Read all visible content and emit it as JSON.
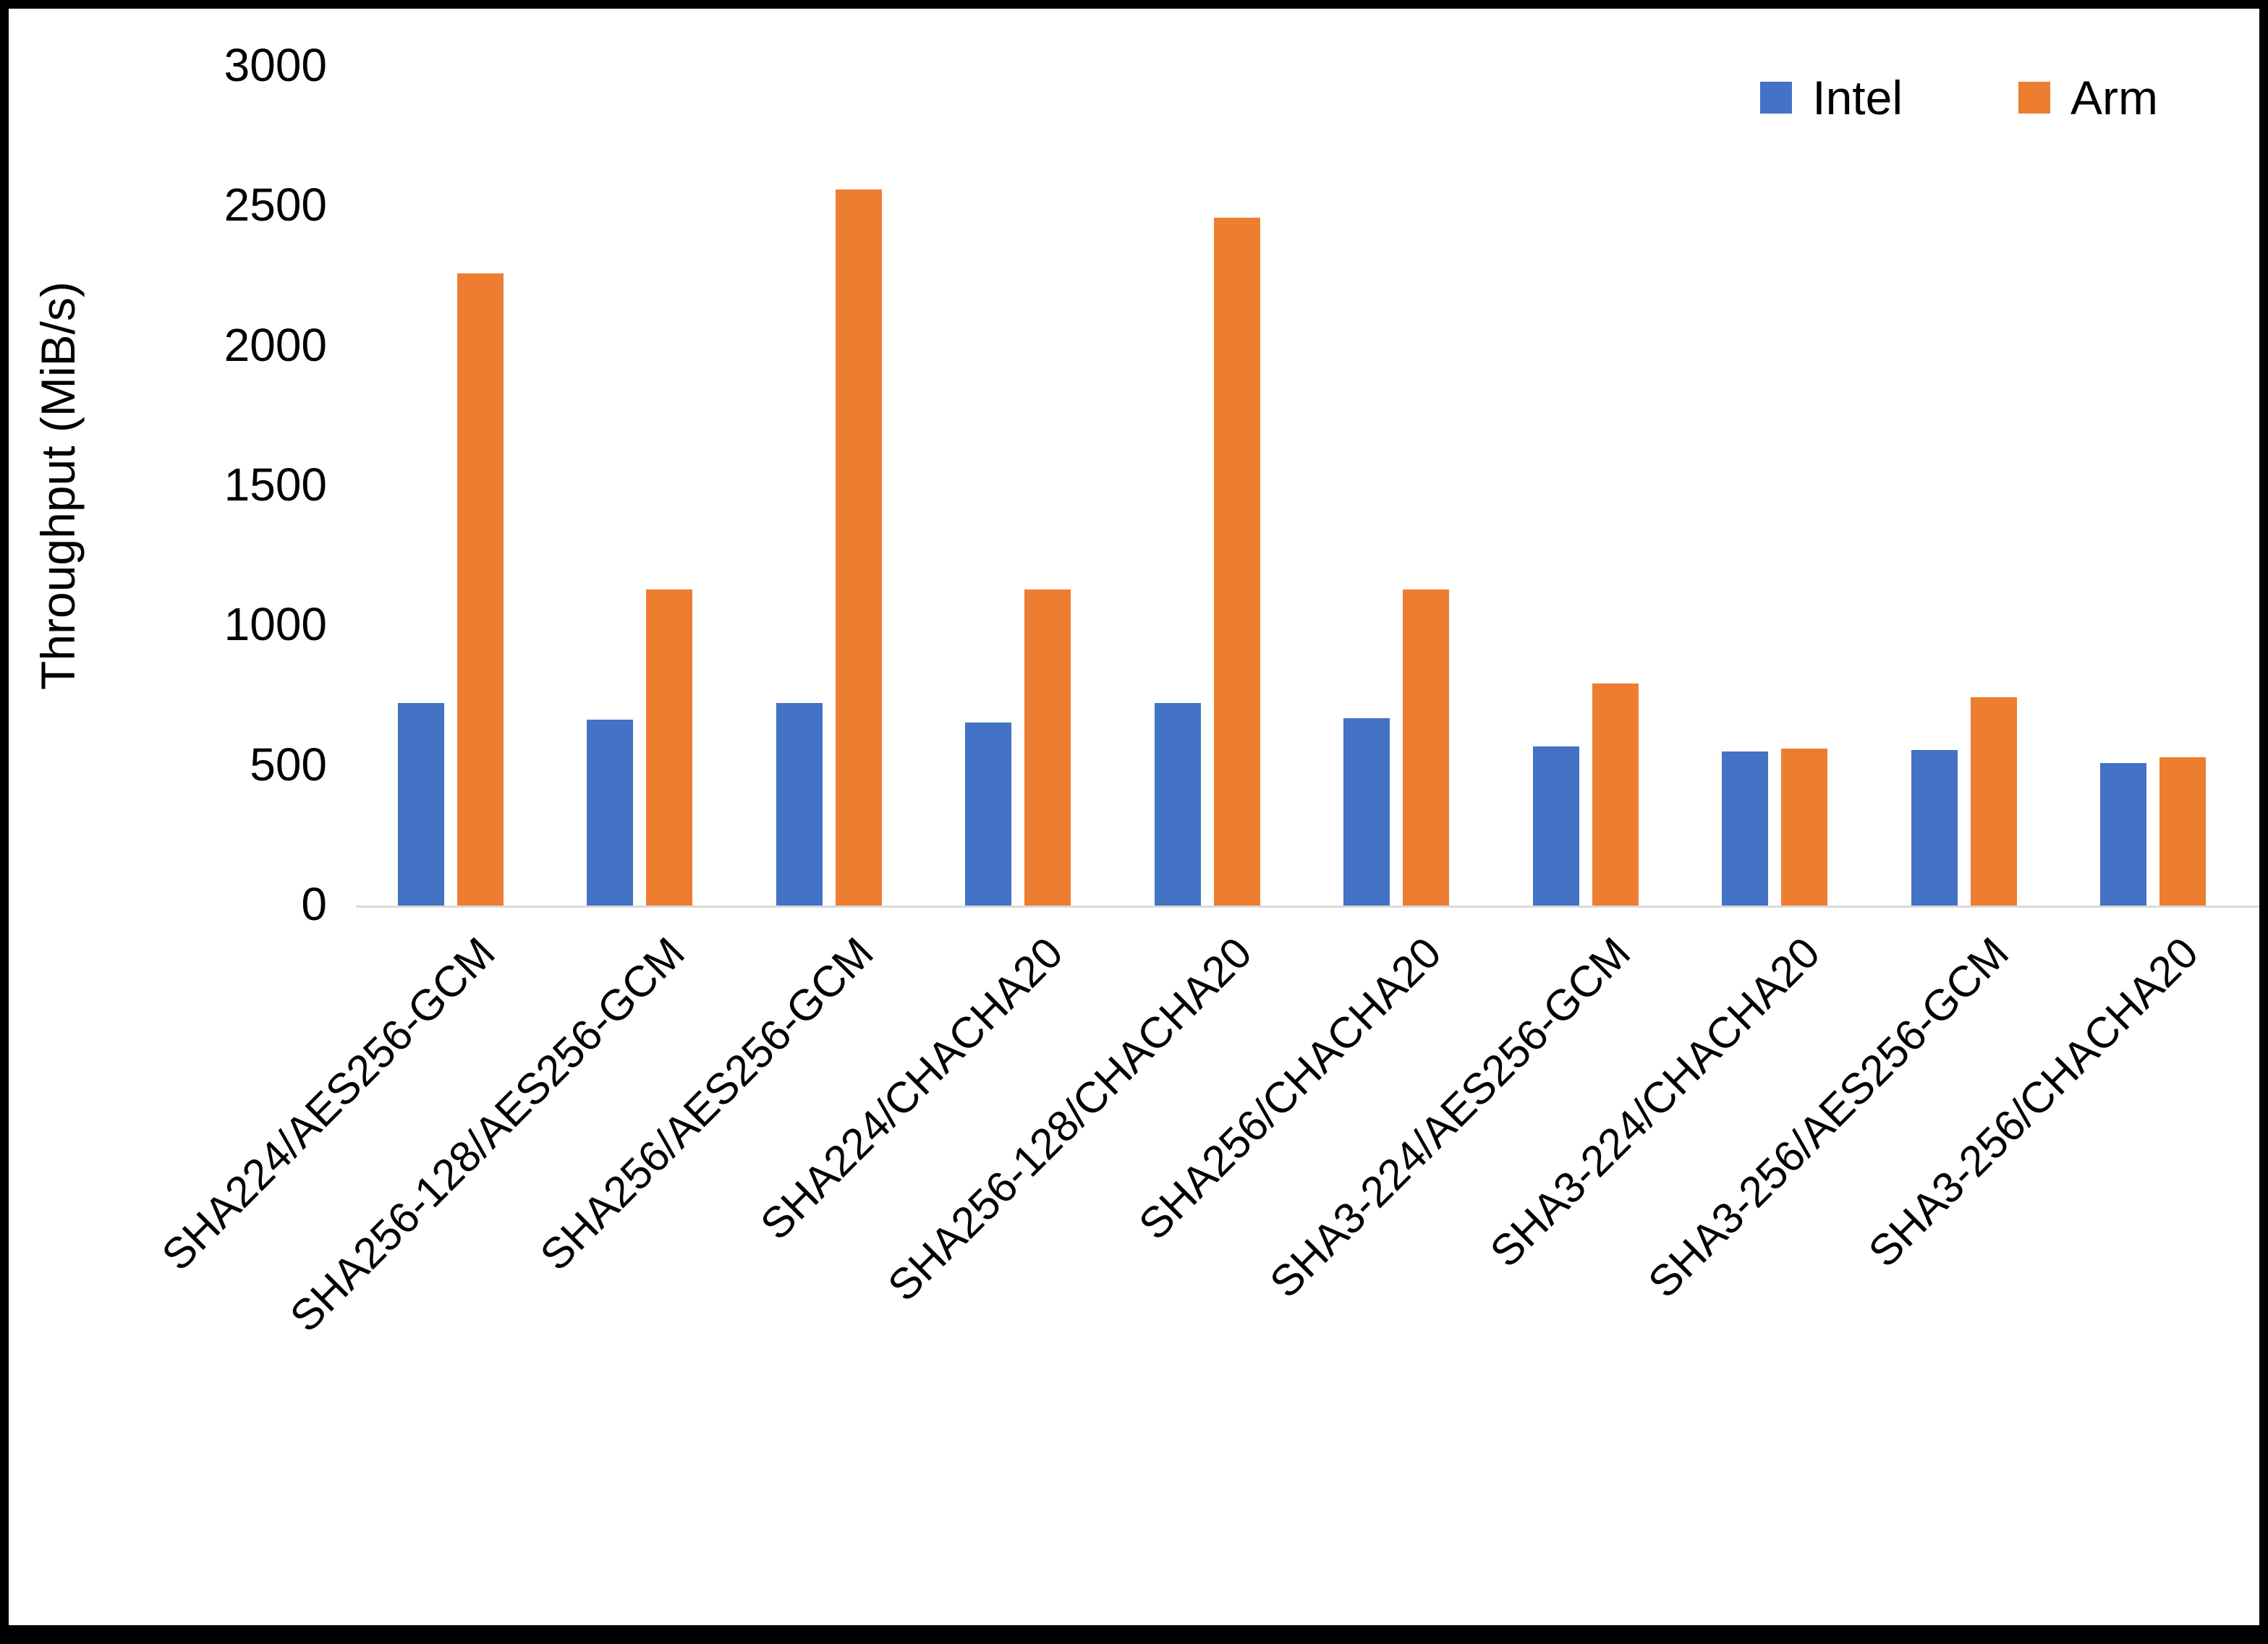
{
  "chart_data": {
    "type": "bar",
    "title": "",
    "xlabel": "",
    "ylabel": "Throughput (MiB/s)",
    "categories": [
      "SHA224/AES256-GCM",
      "SHA256-128/AES256-GCM",
      "SHA256/AES256-GCM",
      "SHA224/CHACHA20",
      "SHA256-128/CHACHA20",
      "SHA256/CHACHA20",
      "SHA3-224/AES256-GCM",
      "SHA3-224/CHACHA20",
      "SHA3-256/AES256-GCM",
      "SHA3-256/CHACHA20"
    ],
    "series": [
      {
        "name": "Intel",
        "color": "#4472C4",
        "values": [
          725,
          665,
          725,
          655,
          725,
          670,
          570,
          550,
          555,
          510
        ]
      },
      {
        "name": "Arm",
        "color": "#ED7D31",
        "values": [
          2260,
          1130,
          2560,
          1130,
          2460,
          1130,
          795,
          560,
          745,
          530
        ]
      }
    ],
    "ylim": [
      0,
      3000
    ],
    "yticks": [
      0,
      500,
      1000,
      1500,
      2000,
      2500,
      3000
    ],
    "legend_position": "top-right",
    "grid": false
  },
  "colors": {
    "axis_line": "#d9d9d9",
    "text": "#000000",
    "frame": "#000000",
    "background": "#ffffff"
  }
}
